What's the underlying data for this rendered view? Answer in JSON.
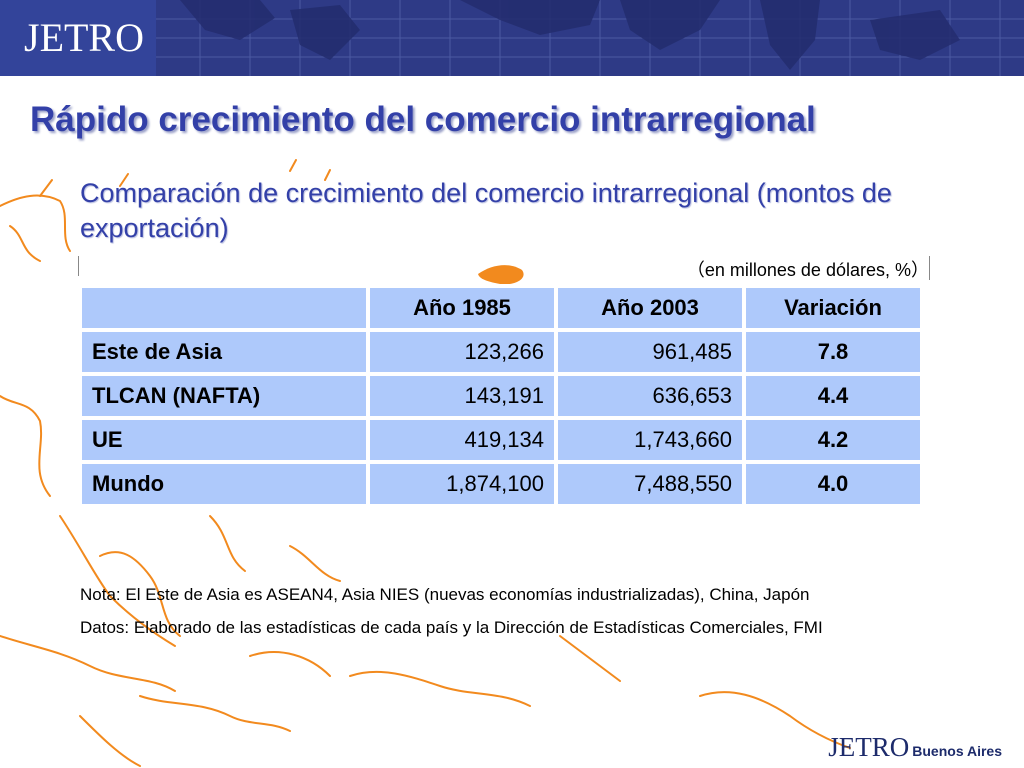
{
  "header": {
    "logo": "JETRO",
    "colors": {
      "band": "#2e3a86",
      "logo_box": "#33449a"
    }
  },
  "title": "Rápido crecimiento del comercio intrarregional",
  "subtitle": "Comparación de crecimiento del comercio intrarregional (montos de exportación)",
  "unit_note": "（en millones de dólares, %）",
  "table": {
    "headers": [
      "",
      "Año 1985",
      "Año 2003",
      "Variación"
    ],
    "rows": [
      [
        "Este de Asia",
        "123,266",
        "961,485",
        "7.8"
      ],
      [
        "TLCAN (NAFTA)",
        "143,191",
        "636,653",
        "4.4"
      ],
      [
        "UE",
        "419,134",
        "1,743,660",
        "4.2"
      ],
      [
        "Mundo",
        "1,874,100",
        "7,488,550",
        "4.0"
      ]
    ],
    "cell_color": "#aec9fb"
  },
  "notes": {
    "nota": "Nota: El Este de Asia es ASEAN4, Asia NIES (nuevas economías industrializadas), China, Japón",
    "datos": "Datos: Elaborado de las estadísticas de cada país y la Dirección de Estadísticas Comerciales, FMI"
  },
  "footer": {
    "logo": "JETRO",
    "city": "Buenos Aires"
  },
  "colors": {
    "title": "#3340a8",
    "map_outline": "#f28a1e"
  }
}
